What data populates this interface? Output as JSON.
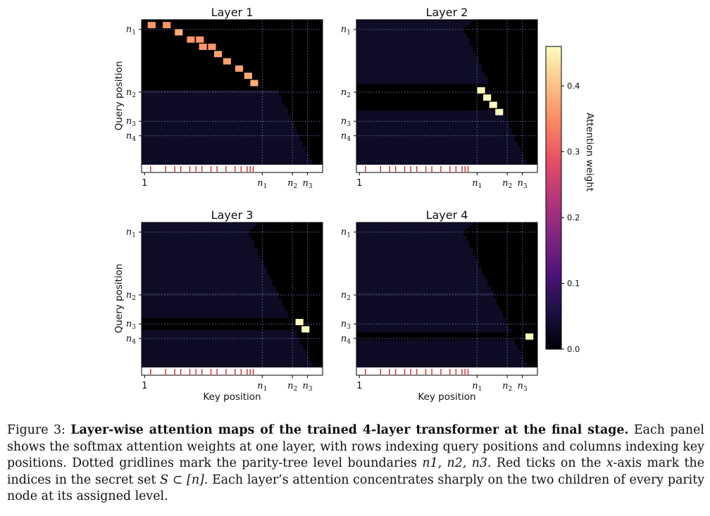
{
  "chart_data": {
    "type": "heatmap",
    "panels": [
      {
        "title": "Layer 1",
        "ylabel": "Query position",
        "xlabel": "",
        "background": {
          "top": "#000000",
          "bottom": "#0e0b24",
          "split": "n2"
        },
        "dark_band": null,
        "hot_cells": [
          {
            "q": 2,
            "k": 3,
            "w": 0.36
          },
          {
            "q": 2,
            "k": 8,
            "w": 0.36
          },
          {
            "q": 5,
            "k": 12,
            "w": 0.38
          },
          {
            "q": 8,
            "k": 16,
            "w": 0.36
          },
          {
            "q": 8,
            "k": 19,
            "w": 0.36
          },
          {
            "q": 11,
            "k": 20,
            "w": 0.36
          },
          {
            "q": 11,
            "k": 23,
            "w": 0.36
          },
          {
            "q": 14,
            "k": 25,
            "w": 0.37
          },
          {
            "q": 17,
            "k": 28,
            "w": 0.37
          },
          {
            "q": 20,
            "k": 32,
            "w": 0.37
          },
          {
            "q": 23,
            "k": 35,
            "w": 0.38
          },
          {
            "q": 26,
            "k": 37,
            "w": 0.38
          }
        ]
      },
      {
        "title": "Layer 2",
        "ylabel": "",
        "xlabel": "",
        "background": {
          "top": "#0f0c26",
          "bottom": "#0e0b24",
          "split": "n2"
        },
        "dark_band": {
          "from": 27,
          "to": 38
        },
        "hot_cells": [
          {
            "q": 29,
            "k": 41,
            "w": 0.46
          },
          {
            "q": 32,
            "k": 43,
            "w": 0.46
          },
          {
            "q": 35,
            "k": 45,
            "w": 0.46
          },
          {
            "q": 38,
            "k": 47,
            "w": 0.46
          }
        ]
      },
      {
        "title": "Layer 3",
        "ylabel": "Query position",
        "xlabel": "Key position",
        "background": {
          "top": "#0f0c26",
          "bottom": "#0e0b24",
          "split": "n2"
        },
        "dark_band": {
          "from": 40,
          "to": 45
        },
        "hot_cells": [
          {
            "q": 41,
            "k": 52,
            "w": 0.46
          },
          {
            "q": 44,
            "k": 54,
            "w": 0.46
          }
        ]
      },
      {
        "title": "Layer 4",
        "ylabel": "",
        "xlabel": "Key position",
        "background": {
          "top": "#0f0c26",
          "bottom": "#0e0b24",
          "split": "n2"
        },
        "dark_band": {
          "from": 46,
          "to": 49
        },
        "hot_cells": [
          {
            "q": 47,
            "k": 57,
            "w": 0.46
          }
        ]
      }
    ],
    "size": 60,
    "levels": {
      "n1": 4,
      "n2": 30,
      "n3": 42,
      "n4": 48
    },
    "secret_set": [
      3,
      8,
      11,
      13,
      16,
      18,
      20,
      23,
      25,
      28,
      31,
      33,
      35,
      36,
      37
    ],
    "y_ticks": [
      "n1",
      "n2",
      "n3",
      "n4"
    ],
    "x_ticks": [
      {
        "label": "1",
        "pos": 1
      },
      {
        "label": "n1",
        "pos": 40
      },
      {
        "label": "n2",
        "pos": 50
      },
      {
        "label": "n3",
        "pos": 55
      }
    ],
    "colorbar": {
      "label": "Attention weight",
      "ticks": [
        "0.0",
        "0.1",
        "0.2",
        "0.3",
        "0.4"
      ],
      "range": [
        0,
        0.46
      ]
    },
    "colors": {
      "gridline": "#7f88c8",
      "secret_tick": "#d62728",
      "colormap": [
        "#000004",
        "#1c1044",
        "#4f127b",
        "#812581",
        "#b5367a",
        "#e55064",
        "#fb8761",
        "#fec287",
        "#fcfdbf"
      ]
    }
  },
  "caption": {
    "figure_label": "Figure 3:",
    "bold_title": "Layer-wise attention maps of the trained 4-layer transformer at the final stage.",
    "text_1": "Each panel shows the softmax attention weights at one layer, with rows indexing query positions and columns indexing key positions. Dotted gridlines mark the parity-tree level boundaries",
    "math_levels": "n1, n2, n3",
    "text_2": ". Red ticks on the",
    "math_x": "x",
    "text_3": "-axis mark the indices in the secret set",
    "math_set": "S ⊂ [n]",
    "text_4": ". Each layer’s attention concentrates sharply on the two children of every parity node at its assigned level."
  }
}
